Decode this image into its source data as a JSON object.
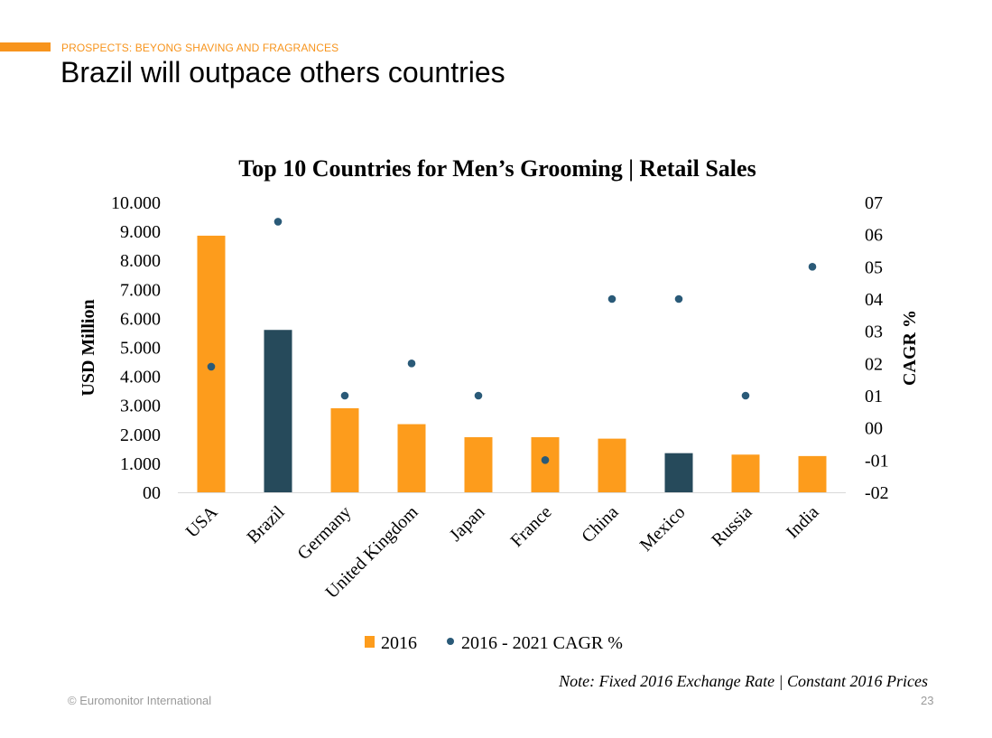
{
  "header": {
    "eyebrow": "PROSPECTS: BEYONG SHAVING AND FRAGRANCES",
    "title": "Brazil will outpace others countries"
  },
  "footer": {
    "copyright": "© Euromonitor International",
    "page_number": "23"
  },
  "colors": {
    "accent": "#f7941d",
    "bar_orange": "#fd9c1c",
    "bar_navy": "#264a5b",
    "dot": "#2a5a78"
  },
  "chart_data": {
    "type": "bar",
    "title": "Top 10 Countries for Men’s Grooming | Retail Sales",
    "note": "Note: Fixed 2016 Exchange Rate | Constant 2016 Prices",
    "categories": [
      "USA",
      "Brazil",
      "Germany",
      "United Kingdom",
      "Japan",
      "France",
      "China",
      "Mexico",
      "Russia",
      "India"
    ],
    "series": [
      {
        "name": "2016",
        "type": "bar",
        "axis": "left",
        "values": [
          8850,
          5600,
          2900,
          2350,
          1900,
          1900,
          1850,
          1350,
          1300,
          1250
        ],
        "highlight": [
          false,
          true,
          false,
          false,
          false,
          false,
          false,
          true,
          false,
          false
        ]
      },
      {
        "name": "2016 - 2021 CAGR %",
        "type": "scatter",
        "axis": "right",
        "values": [
          1.9,
          6.4,
          1.0,
          2.0,
          1.0,
          -1.0,
          4.0,
          4.0,
          1.0,
          5.0
        ]
      }
    ],
    "ylabel": "USD Million",
    "y2label": "CAGR %",
    "ylim": [
      0,
      10000
    ],
    "y2lim": [
      -2,
      7
    ],
    "yticks": [
      "00",
      "1.000",
      "2.000",
      "3.000",
      "4.000",
      "5.000",
      "6.000",
      "7.000",
      "8.000",
      "9.000",
      "10.000"
    ],
    "y2ticks": [
      "-02",
      "-01",
      "00",
      "01",
      "02",
      "03",
      "04",
      "05",
      "06",
      "07"
    ],
    "grid": false,
    "legend": "bottom"
  }
}
